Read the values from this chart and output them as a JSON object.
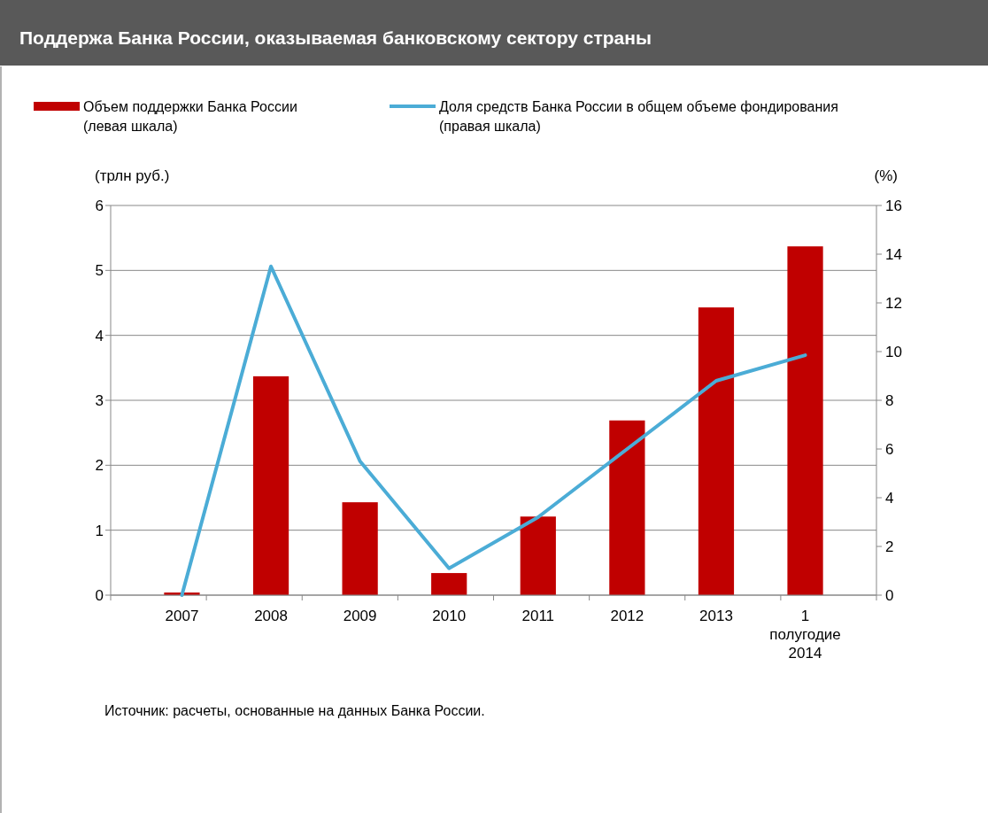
{
  "chart_data": {
    "type": "bar",
    "title": "Поддержа Банка России, оказываемая банковскому сектору страны",
    "categories": [
      "2007",
      "2008",
      "2009",
      "2010",
      "2011",
      "2012",
      "2013",
      "1 полугодие 2014"
    ],
    "series": [
      {
        "name": "Объем поддержки Банка России (левая шкала)",
        "color": "#c00000",
        "values": [
          0.04,
          3.37,
          1.43,
          0.34,
          1.21,
          2.69,
          4.43,
          5.37
        ]
      },
      {
        "name": "Доля средств Банка России в общем объеме фондирования (правая шкала)",
        "type": "line",
        "axis": "y2",
        "color": "#4bacd6",
        "values": [
          0,
          13.5,
          5.5,
          1.1,
          3.2,
          6.0,
          8.8,
          9.85
        ]
      }
    ],
    "ylabel": "(трлн руб.)",
    "y2label": "(%)",
    "ylim": [
      0,
      6
    ],
    "yticks": [
      0,
      1,
      2,
      3,
      4,
      5,
      6
    ],
    "y2lim": [
      0,
      16
    ],
    "y2ticks": [
      0,
      2,
      4,
      6,
      8,
      10,
      12,
      14,
      16
    ],
    "grid": "y",
    "legend": "top",
    "marker": "none",
    "line_style": "solid",
    "annotations": [
      "Источник: расчеты, основанные на данных Банка России."
    ]
  }
}
